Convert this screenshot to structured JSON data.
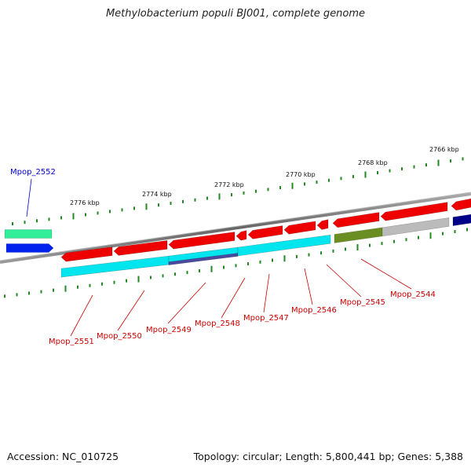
{
  "title": "Methylobacterium populi BJ001, complete genome",
  "footer": {
    "accession": "Accession: NC_010725",
    "topology": "Topology: circular; Length: 5,800,441 bp; Genes: 5,388"
  },
  "ticks": [
    {
      "label": "2776 kbp"
    },
    {
      "label": "2774 kbp"
    },
    {
      "label": "2772 kbp"
    },
    {
      "label": "2770 kbp"
    },
    {
      "label": "2768 kbp"
    },
    {
      "label": "2766 kbp"
    }
  ],
  "genes": [
    {
      "label": "Mpop_2552",
      "color": "#0000cc"
    },
    {
      "label": "Mpop_2551",
      "color": "#cc0000"
    },
    {
      "label": "Mpop_2550",
      "color": "#cc0000"
    },
    {
      "label": "Mpop_2549",
      "color": "#cc0000"
    },
    {
      "label": "Mpop_2548",
      "color": "#cc0000"
    },
    {
      "label": "Mpop_2547",
      "color": "#cc0000"
    },
    {
      "label": "Mpop_2546",
      "color": "#cc0000"
    },
    {
      "label": "Mpop_2545",
      "color": "#cc0000"
    },
    {
      "label": "Mpop_2544",
      "color": "#cc0000"
    }
  ],
  "colors": {
    "forward_red": "#ee0000",
    "cyan": "#00e5ee",
    "green_teal": "#33ee99",
    "blue": "#0022ee",
    "navy": "#000088",
    "olive": "#6b8e23",
    "gray": "#bbbbbb",
    "slate_blue": "#4a4aa0",
    "tick_green": "#228822",
    "backbone": "#777777"
  }
}
